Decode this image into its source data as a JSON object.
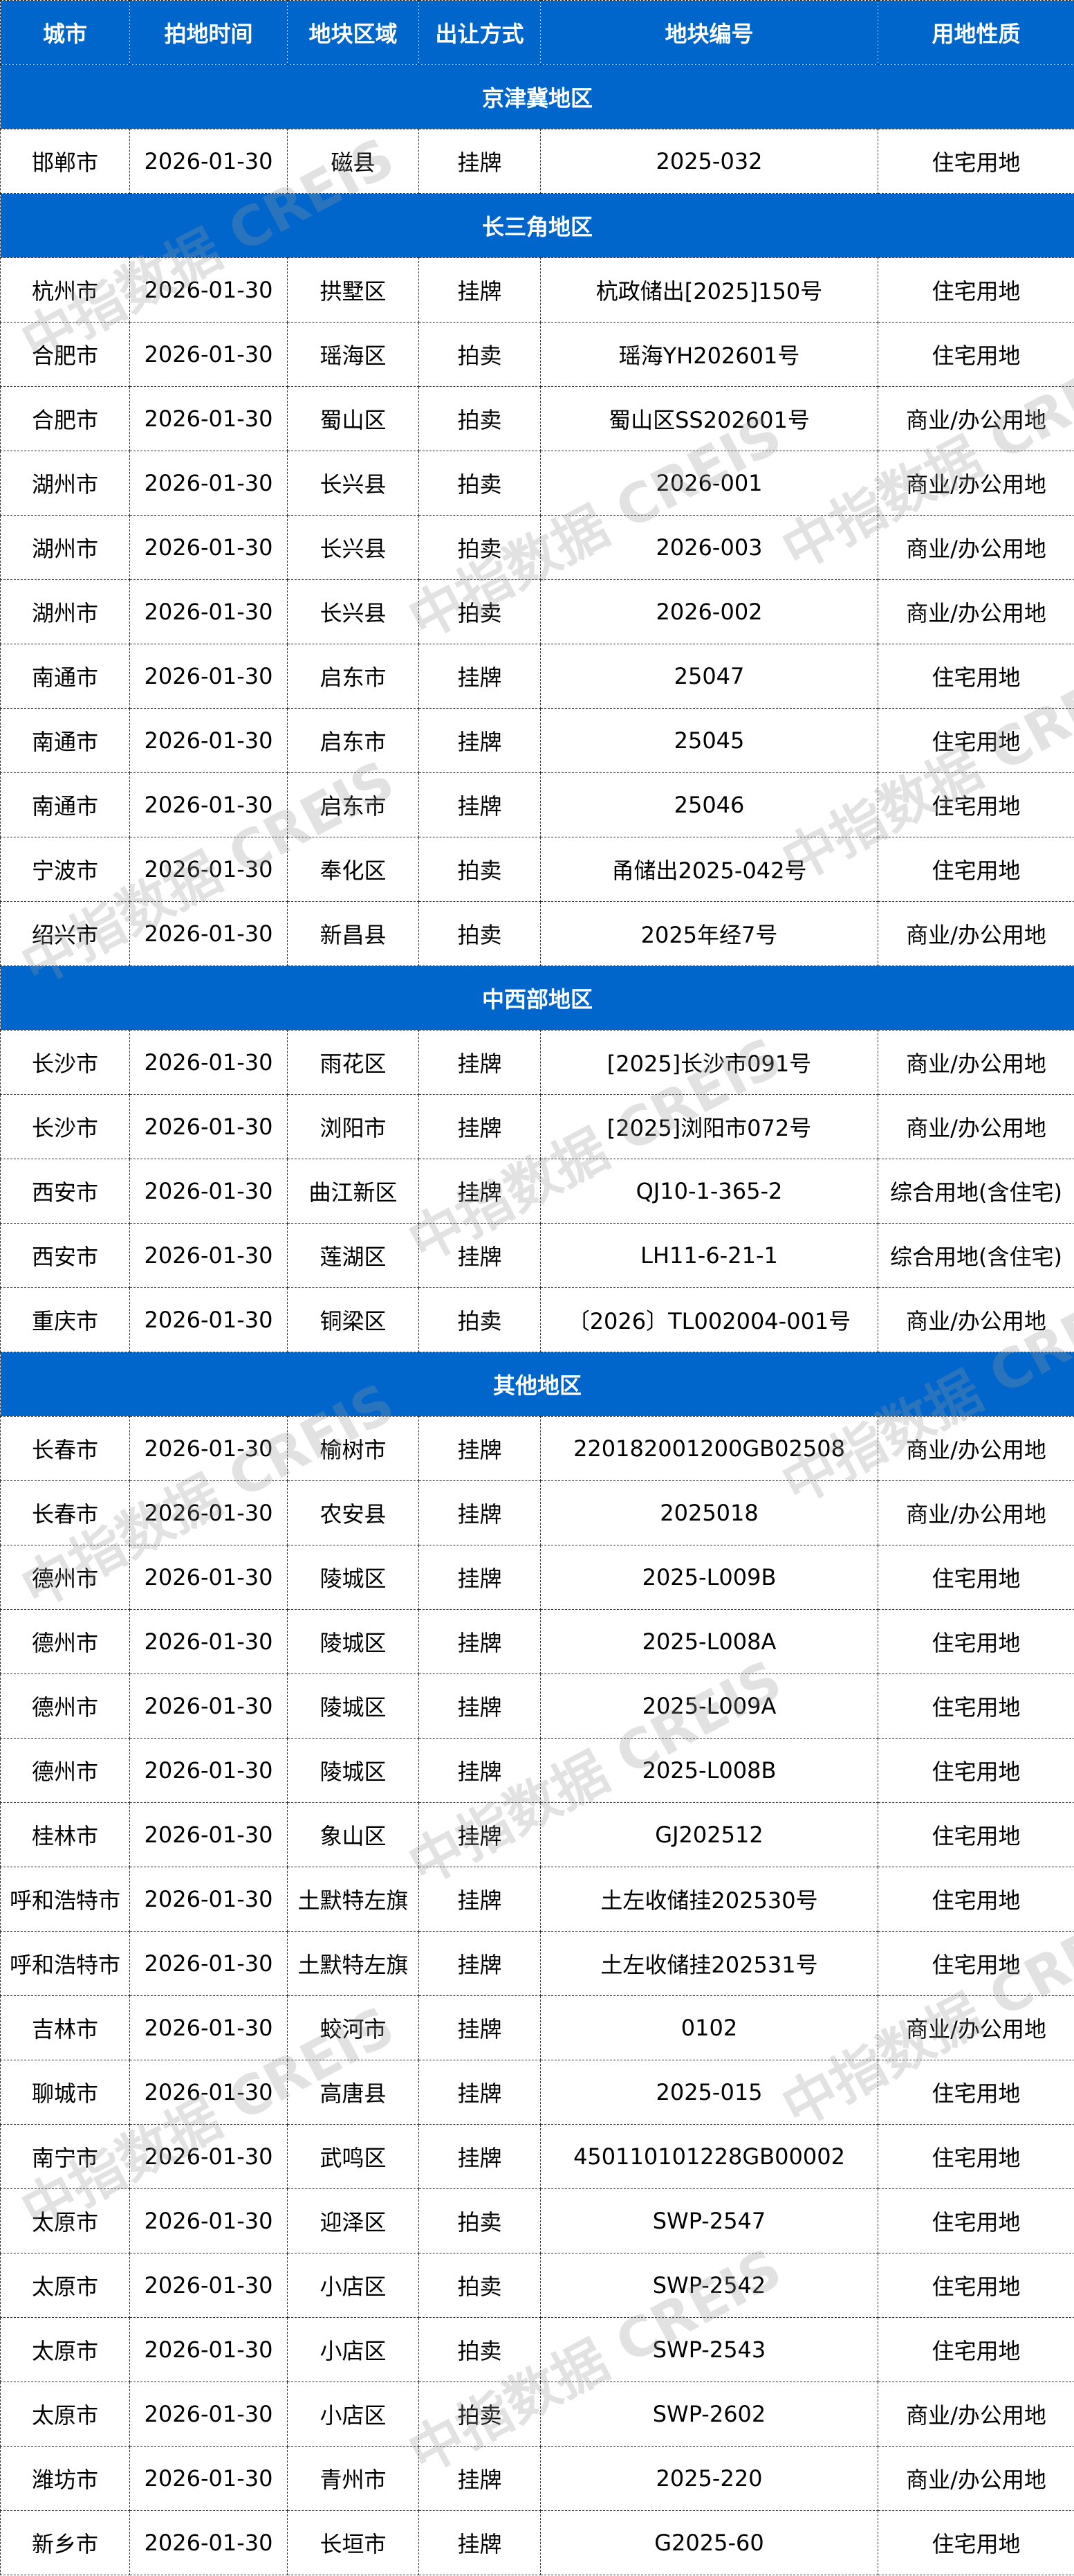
{
  "header": [
    "城市",
    "拍地时间",
    "地块区域",
    "出让方式",
    "地块编号",
    "用地性质"
  ],
  "watermark": "中指数据 CREIS",
  "colors": {
    "header_bg": "#0066cc",
    "header_text": "#ffffff"
  },
  "regions": [
    {
      "name": "京津冀地区",
      "rows": [
        [
          "邯郸市",
          "2026-01-30",
          "磁县",
          "挂牌",
          "2025-032",
          "住宅用地"
        ]
      ]
    },
    {
      "name": "长三角地区",
      "rows": [
        [
          "杭州市",
          "2026-01-30",
          "拱墅区",
          "挂牌",
          "杭政储出[2025]150号",
          "住宅用地"
        ],
        [
          "合肥市",
          "2026-01-30",
          "瑶海区",
          "拍卖",
          "瑶海YH202601号",
          "住宅用地"
        ],
        [
          "合肥市",
          "2026-01-30",
          "蜀山区",
          "拍卖",
          "蜀山区SS202601号",
          "商业/办公用地"
        ],
        [
          "湖州市",
          "2026-01-30",
          "长兴县",
          "拍卖",
          "2026-001",
          "商业/办公用地"
        ],
        [
          "湖州市",
          "2026-01-30",
          "长兴县",
          "拍卖",
          "2026-003",
          "商业/办公用地"
        ],
        [
          "湖州市",
          "2026-01-30",
          "长兴县",
          "拍卖",
          "2026-002",
          "商业/办公用地"
        ],
        [
          "南通市",
          "2026-01-30",
          "启东市",
          "挂牌",
          "25047",
          "住宅用地"
        ],
        [
          "南通市",
          "2026-01-30",
          "启东市",
          "挂牌",
          "25045",
          "住宅用地"
        ],
        [
          "南通市",
          "2026-01-30",
          "启东市",
          "挂牌",
          "25046",
          "住宅用地"
        ],
        [
          "宁波市",
          "2026-01-30",
          "奉化区",
          "拍卖",
          "甬储出2025-042号",
          "住宅用地"
        ],
        [
          "绍兴市",
          "2026-01-30",
          "新昌县",
          "拍卖",
          "2025年经7号",
          "商业/办公用地"
        ]
      ]
    },
    {
      "name": "中西部地区",
      "rows": [
        [
          "长沙市",
          "2026-01-30",
          "雨花区",
          "挂牌",
          "[2025]长沙市091号",
          "商业/办公用地"
        ],
        [
          "长沙市",
          "2026-01-30",
          "浏阳市",
          "挂牌",
          "[2025]浏阳市072号",
          "商业/办公用地"
        ],
        [
          "西安市",
          "2026-01-30",
          "曲江新区",
          "挂牌",
          "QJ10-1-365-2",
          "综合用地(含住宅)"
        ],
        [
          "西安市",
          "2026-01-30",
          "莲湖区",
          "挂牌",
          "LH11-6-21-1",
          "综合用地(含住宅)"
        ],
        [
          "重庆市",
          "2026-01-30",
          "铜梁区",
          "拍卖",
          "〔2026〕TL002004-001号",
          "商业/办公用地"
        ]
      ]
    },
    {
      "name": "其他地区",
      "rows": [
        [
          "长春市",
          "2026-01-30",
          "榆树市",
          "挂牌",
          "220182001200GB02508",
          "商业/办公用地"
        ],
        [
          "长春市",
          "2026-01-30",
          "农安县",
          "挂牌",
          "2025018",
          "商业/办公用地"
        ],
        [
          "德州市",
          "2026-01-30",
          "陵城区",
          "挂牌",
          "2025-L009B",
          "住宅用地"
        ],
        [
          "德州市",
          "2026-01-30",
          "陵城区",
          "挂牌",
          "2025-L008A",
          "住宅用地"
        ],
        [
          "德州市",
          "2026-01-30",
          "陵城区",
          "挂牌",
          "2025-L009A",
          "住宅用地"
        ],
        [
          "德州市",
          "2026-01-30",
          "陵城区",
          "挂牌",
          "2025-L008B",
          "住宅用地"
        ],
        [
          "桂林市",
          "2026-01-30",
          "象山区",
          "挂牌",
          "GJ202512",
          "住宅用地"
        ],
        [
          "呼和浩特市",
          "2026-01-30",
          "土默特左旗",
          "挂牌",
          "土左收储挂202530号",
          "住宅用地"
        ],
        [
          "呼和浩特市",
          "2026-01-30",
          "土默特左旗",
          "挂牌",
          "土左收储挂202531号",
          "住宅用地"
        ],
        [
          "吉林市",
          "2026-01-30",
          "蛟河市",
          "挂牌",
          "0102",
          "商业/办公用地"
        ],
        [
          "聊城市",
          "2026-01-30",
          "高唐县",
          "挂牌",
          "2025-015",
          "住宅用地"
        ],
        [
          "南宁市",
          "2026-01-30",
          "武鸣区",
          "挂牌",
          "450110101228GB00002",
          "住宅用地"
        ],
        [
          "太原市",
          "2026-01-30",
          "迎泽区",
          "拍卖",
          "SWP-2547",
          "住宅用地"
        ],
        [
          "太原市",
          "2026-01-30",
          "小店区",
          "拍卖",
          "SWP-2542",
          "住宅用地"
        ],
        [
          "太原市",
          "2026-01-30",
          "小店区",
          "拍卖",
          "SWP-2543",
          "住宅用地"
        ],
        [
          "太原市",
          "2026-01-30",
          "小店区",
          "拍卖",
          "SWP-2602",
          "商业/办公用地"
        ],
        [
          "潍坊市",
          "2026-01-30",
          "青州市",
          "挂牌",
          "2025-220",
          "商业/办公用地"
        ],
        [
          "新乡市",
          "2026-01-30",
          "长垣市",
          "挂牌",
          "G2025-60",
          "住宅用地"
        ]
      ]
    }
  ]
}
